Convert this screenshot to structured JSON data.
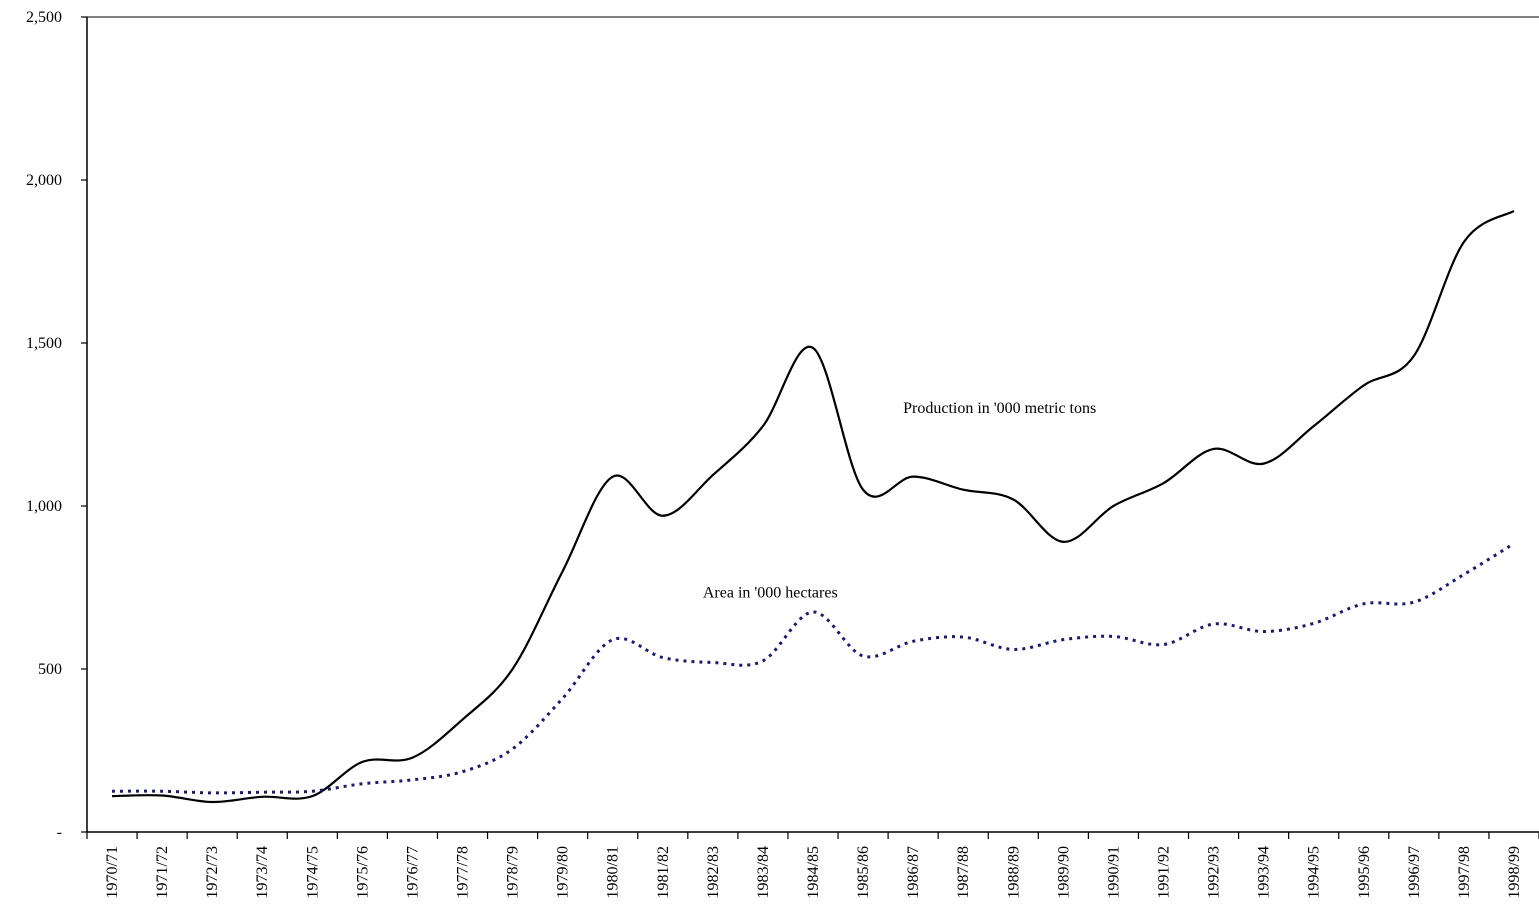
{
  "chart_data": {
    "type": "line",
    "title": "",
    "xlabel": "",
    "ylabel": "",
    "ylim": [
      0,
      2500
    ],
    "yticks": [
      0,
      500,
      1000,
      1500,
      2000,
      2500
    ],
    "ytick_labels": [
      "-",
      "500",
      "1,000",
      "1,500",
      "2,000",
      "2,500"
    ],
    "grid": false,
    "legend": "none",
    "categories": [
      "1970/71",
      "1971/72",
      "1972/73",
      "1973/74",
      "1974/75",
      "1975/76",
      "1976/77",
      "1977/78",
      "1978/79",
      "1979/80",
      "1980/81",
      "1981/82",
      "1982/83",
      "1983/84",
      "1984/85",
      "1985/86",
      "1986/87",
      "1987/88",
      "1988/89",
      "1989/90",
      "1990/91",
      "1991/92",
      "1992/93",
      "1993/94",
      "1994/95",
      "1995/96",
      "1996/97",
      "1997/98",
      "1998/99"
    ],
    "series": [
      {
        "name": "Production in '000 metric tons",
        "color": "#000000",
        "style": "solid",
        "values": [
          110,
          112,
          92,
          108,
          110,
          215,
          228,
          345,
          500,
          800,
          1090,
          970,
          1095,
          1245,
          1485,
          1050,
          1090,
          1050,
          1020,
          890,
          1000,
          1070,
          1175,
          1130,
          1245,
          1370,
          1460,
          1810,
          1905
        ]
      },
      {
        "name": "Area in '000 hectares",
        "color": "#1a1a6e",
        "style": "dotted",
        "values": [
          125,
          125,
          120,
          122,
          125,
          148,
          160,
          185,
          255,
          410,
          590,
          535,
          520,
          525,
          675,
          540,
          585,
          598,
          560,
          590,
          600,
          575,
          638,
          615,
          640,
          700,
          705,
          790,
          885
        ]
      }
    ],
    "annotations": [
      {
        "text": "Production in '000 metric tons",
        "x_category": "1986/87",
        "y": 1300
      },
      {
        "text": "Area in '000 hectares",
        "x_category": "1982/83",
        "y": 735
      }
    ]
  }
}
